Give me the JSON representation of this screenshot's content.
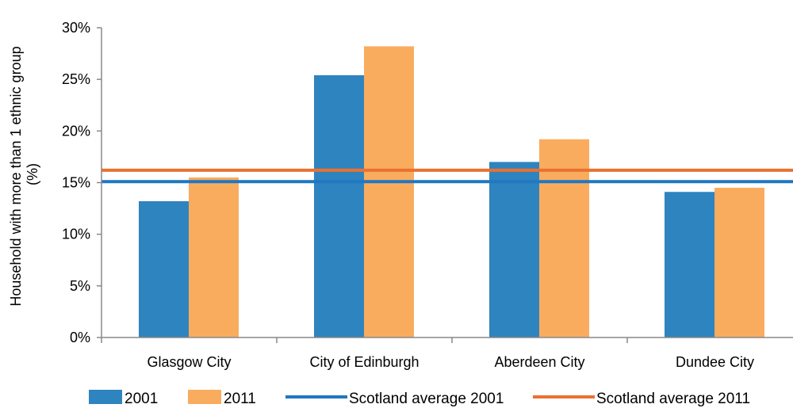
{
  "chart_data": {
    "type": "bar",
    "categories": [
      "Glasgow City",
      "City of Edinburgh",
      "Aberdeen City",
      "Dundee City"
    ],
    "series": [
      {
        "name": "2001",
        "values": [
          13.2,
          25.4,
          17.0,
          14.1
        ],
        "color": "#2e84bf"
      },
      {
        "name": "2011",
        "values": [
          15.5,
          28.2,
          19.2,
          14.5
        ],
        "color": "#f9ac5e"
      }
    ],
    "reference_lines": [
      {
        "name": "Scotland average 2001",
        "value": 15.1,
        "color": "#2077c2"
      },
      {
        "name": "Scotland average 2011",
        "value": 16.2,
        "color": "#ea7131"
      }
    ],
    "ylabel_line1": "Household with more than 1 ethnic group",
    "ylabel_line2": "(%)",
    "ylim": [
      0,
      30
    ],
    "yticks": [
      0,
      5,
      10,
      15,
      20,
      25,
      30
    ],
    "ytick_labels": [
      "0%",
      "5%",
      "10%",
      "15%",
      "20%",
      "25%",
      "30%"
    ],
    "grid": false,
    "legend_position": "bottom"
  }
}
